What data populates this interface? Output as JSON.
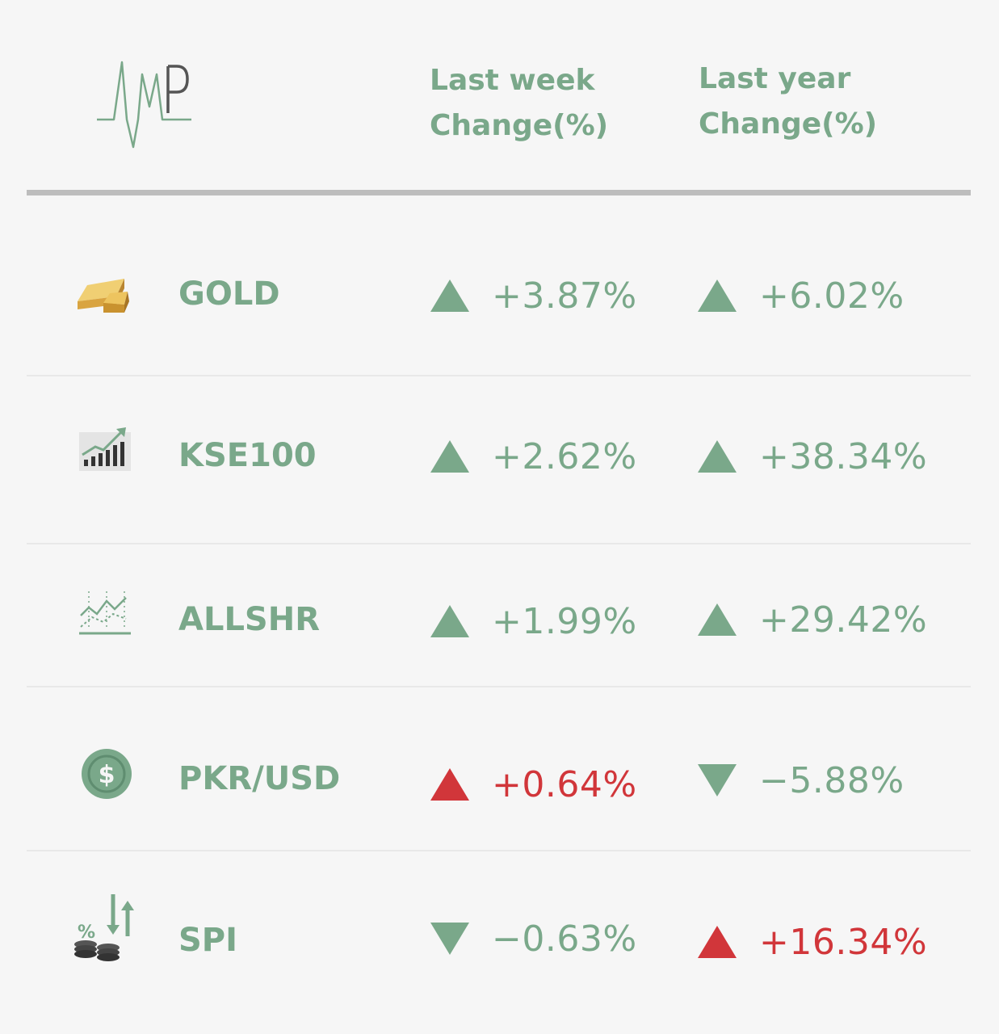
{
  "logo": {
    "text": "MP",
    "icon": "amp-heartbeat-logo"
  },
  "header": {
    "week_label": [
      "Last week",
      "Change(%)"
    ],
    "year_label": [
      "Last year",
      "Change(%)"
    ]
  },
  "colors": {
    "positive": "#7aa88a",
    "negative": "#d1363a",
    "rule": "#bdbdbd",
    "background": "#f6f6f6"
  },
  "rows": [
    {
      "name": "GOLD",
      "icon": "gold-bar-icon",
      "week": {
        "value": "+3.87%",
        "direction": "up",
        "color": "green"
      },
      "year": {
        "value": "+6.02%",
        "direction": "up",
        "color": "green"
      }
    },
    {
      "name": "KSE100",
      "icon": "bar-chart-trend-icon",
      "week": {
        "value": "+2.62%",
        "direction": "up",
        "color": "green"
      },
      "year": {
        "value": "+38.34%",
        "direction": "up",
        "color": "green"
      }
    },
    {
      "name": "ALLSHR",
      "icon": "line-chart-icon",
      "week": {
        "value": "+1.99%",
        "direction": "up",
        "color": "green"
      },
      "year": {
        "value": "+29.42%",
        "direction": "up",
        "color": "green"
      }
    },
    {
      "name": "PKR/USD",
      "icon": "dollar-coin-icon",
      "week": {
        "value": "+0.64%",
        "direction": "up",
        "color": "red"
      },
      "year": {
        "value": "−5.88%",
        "direction": "down",
        "color": "green"
      }
    },
    {
      "name": "SPI",
      "icon": "inflation-coins-icon",
      "week": {
        "value": "−0.63%",
        "direction": "down",
        "color": "green"
      },
      "year": {
        "value": "+16.34%",
        "direction": "up",
        "color": "red"
      }
    }
  ]
}
